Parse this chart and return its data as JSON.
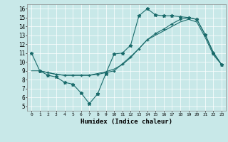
{
  "xlabel": "Humidex (Indice chaleur)",
  "xlim": [
    -0.5,
    23.5
  ],
  "ylim": [
    4.5,
    16.5
  ],
  "xticks": [
    0,
    1,
    2,
    3,
    4,
    5,
    6,
    7,
    8,
    9,
    10,
    11,
    12,
    13,
    14,
    15,
    16,
    17,
    18,
    19,
    20,
    21,
    22,
    23
  ],
  "yticks": [
    5,
    6,
    7,
    8,
    9,
    10,
    11,
    12,
    13,
    14,
    15,
    16
  ],
  "bg_color": "#c8e8e8",
  "line_color": "#1a6b6b",
  "line1_x": [
    0,
    1,
    2,
    3,
    4,
    5,
    6,
    7,
    8,
    9,
    10,
    11,
    12,
    13,
    14,
    15,
    16,
    17,
    18,
    19,
    20,
    21,
    22,
    23
  ],
  "line1_y": [
    11,
    9,
    8.5,
    8.3,
    7.7,
    7.5,
    6.5,
    5.3,
    6.4,
    8.7,
    10.9,
    11.0,
    11.9,
    15.2,
    16.0,
    15.3,
    15.2,
    15.2,
    15.1,
    15.0,
    14.8,
    13.1,
    11.0,
    9.7
  ],
  "line2_x": [
    1,
    2,
    3,
    4,
    5,
    6,
    7,
    8,
    9,
    10,
    11,
    12,
    13,
    14,
    15,
    16,
    17,
    18,
    19,
    20,
    21,
    22,
    23
  ],
  "line2_y": [
    9.0,
    8.8,
    8.6,
    8.5,
    8.5,
    8.5,
    8.5,
    8.6,
    8.8,
    9.0,
    9.8,
    10.6,
    11.5,
    12.5,
    13.2,
    13.7,
    14.3,
    14.8,
    15.0,
    14.8,
    13.1,
    11.1,
    9.7
  ],
  "line3_x": [
    0,
    1,
    2,
    3,
    4,
    5,
    6,
    7,
    8,
    9,
    10,
    11,
    12,
    13,
    14,
    15,
    16,
    17,
    18,
    19,
    20,
    21,
    22,
    23
  ],
  "line3_y": [
    9.0,
    9.0,
    8.8,
    8.6,
    8.5,
    8.5,
    8.5,
    8.5,
    8.7,
    8.9,
    9.2,
    9.7,
    10.5,
    11.5,
    12.5,
    13.0,
    13.5,
    14.0,
    14.5,
    14.8,
    14.5,
    12.8,
    10.8,
    9.7
  ]
}
